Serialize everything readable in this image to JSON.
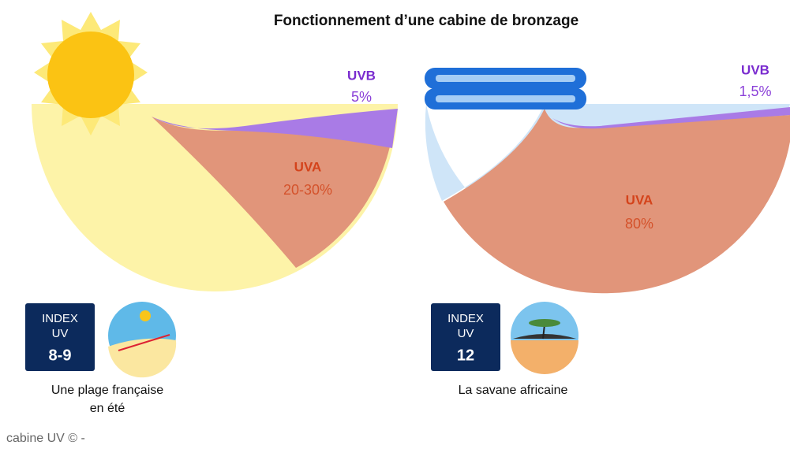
{
  "title": "Fonctionnement d’une cabine de bronzage",
  "panels": [
    {
      "uvb_label": "UVB",
      "uvb_value": "5%",
      "uva_label": "UVA",
      "uva_value": "20-30%",
      "index_lines": [
        "INDEX",
        "UV"
      ],
      "index_value": "8-9",
      "caption_lines": [
        "Une plage française",
        "en été"
      ]
    },
    {
      "uvb_label": "UVB",
      "uvb_value": "1,5%",
      "uva_label": "UVA",
      "uva_value": "80%",
      "index_lines": [
        "INDEX",
        "UV"
      ],
      "index_value": "12",
      "caption_lines": [
        "La savane africaine"
      ]
    }
  ],
  "credit": "cabine UV © -"
}
